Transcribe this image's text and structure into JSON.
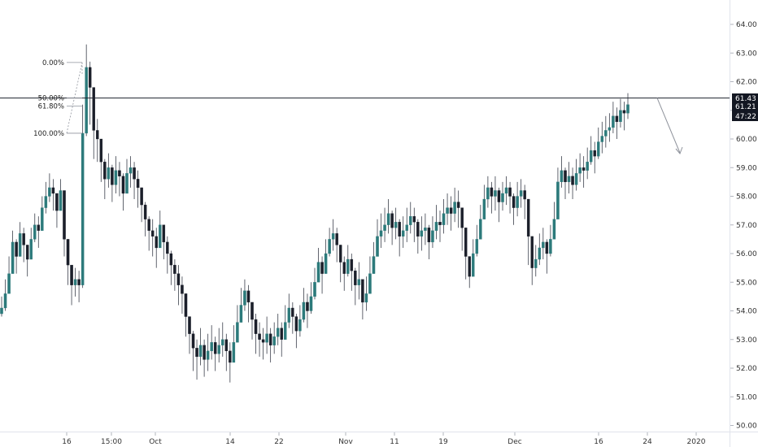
{
  "chart_data": {
    "type": "candlestick",
    "y_axis": {
      "ticks": [
        "64.00",
        "63.00",
        "62.00",
        "61.00",
        "60.00",
        "59.00",
        "58.00",
        "57.00",
        "56.00",
        "55.00",
        "54.00",
        "53.00",
        "52.00",
        "51.00",
        "50.00"
      ],
      "range": [
        49.8,
        64.6
      ]
    },
    "x_axis": {
      "ticks": [
        "16",
        "15:00",
        "Oct",
        "14",
        "22",
        "Nov",
        "11",
        "19",
        "Dec",
        "16",
        "24",
        "2020"
      ]
    },
    "price_tags": [
      {
        "label": "61.43",
        "value": 61.43,
        "bg": "#131722"
      },
      {
        "label": "61.21",
        "value": 61.21,
        "bg": "#131722"
      },
      {
        "label": "47:22",
        "value": 60.93,
        "bg": "#131722"
      }
    ],
    "fib_levels": [
      {
        "label": "0.00%",
        "value": 62.67
      },
      {
        "label": "50.00%",
        "value": 61.43
      },
      {
        "label": "61.80%",
        "value": 61.15
      },
      {
        "label": "100.00%",
        "value": 60.2
      }
    ],
    "horizontal_line": {
      "value": 61.43
    },
    "closes": [
      54.1,
      54.6,
      55.3,
      56.4,
      55.9,
      56.7,
      56.3,
      55.8,
      56.5,
      57.0,
      56.8,
      57.6,
      58.0,
      58.3,
      58.1,
      57.5,
      58.2,
      56.5,
      55.6,
      54.9,
      55.1,
      54.9,
      60.2,
      62.5,
      61.8,
      60.3,
      60.0,
      59.2,
      58.6,
      59.0,
      58.4,
      58.9,
      58.7,
      58.1,
      58.8,
      59.0,
      58.6,
      58.3,
      57.7,
      57.2,
      56.8,
      56.6,
      56.2,
      57.0,
      56.4,
      56.0,
      55.6,
      55.3,
      54.9,
      54.6,
      53.8,
      53.2,
      52.7,
      52.4,
      52.8,
      52.3,
      52.6,
      52.9,
      52.5,
      52.8,
      53.0,
      52.6,
      52.2,
      52.9,
      53.6,
      54.2,
      54.7,
      54.3,
      53.7,
      53.2,
      53.0,
      52.9,
      53.2,
      52.8,
      53.1,
      53.4,
      53.0,
      53.6,
      54.1,
      53.8,
      53.3,
      53.7,
      54.3,
      54.0,
      54.5,
      55.0,
      55.7,
      55.3,
      56.0,
      56.5,
      56.7,
      56.3,
      55.7,
      55.3,
      55.8,
      55.4,
      54.9,
      55.1,
      54.3,
      54.6,
      55.3,
      55.9,
      56.6,
      56.8,
      57.0,
      57.4,
      56.9,
      57.1,
      56.6,
      56.8,
      57.0,
      57.3,
      57.1,
      56.6,
      56.8,
      56.9,
      56.4,
      56.8,
      57.1,
      57.0,
      57.4,
      57.6,
      57.4,
      57.8,
      57.6,
      56.9,
      55.9,
      55.2,
      56.0,
      56.5,
      57.2,
      57.9,
      58.3,
      58.0,
      58.2,
      57.8,
      58.1,
      58.3,
      58.0,
      57.6,
      58.0,
      58.2,
      57.9,
      56.6,
      55.5,
      55.8,
      56.2,
      56.4,
      56.0,
      56.5,
      57.2,
      58.5,
      58.9,
      58.5,
      58.7,
      58.4,
      58.8,
      59.0,
      58.9,
      59.2,
      59.6,
      59.4,
      59.9,
      60.1,
      60.3,
      60.4,
      60.8,
      60.6,
      61.0,
      60.9,
      61.2
    ],
    "highs": [
      54.5,
      55.1,
      55.9,
      56.8,
      56.5,
      57.1,
      56.9,
      56.3,
      56.9,
      57.4,
      57.3,
      58.0,
      58.5,
      58.8,
      58.6,
      58.1,
      58.6,
      57.3,
      56.2,
      55.5,
      55.5,
      55.4,
      61.2,
      63.3,
      62.7,
      61.5,
      60.7,
      59.9,
      59.3,
      59.5,
      59.1,
      59.4,
      59.2,
      58.8,
      59.3,
      59.4,
      59.2,
      58.9,
      58.2,
      57.8,
      57.3,
      57.2,
      56.9,
      57.5,
      57.0,
      56.6,
      56.1,
      55.8,
      55.6,
      55.2,
      54.4,
      53.8,
      53.3,
      53.0,
      53.4,
      53.0,
      53.2,
      53.5,
      53.1,
      53.4,
      53.6,
      53.2,
      52.9,
      53.5,
      54.2,
      54.8,
      55.1,
      54.9,
      54.2,
      53.9,
      53.6,
      53.4,
      53.8,
      53.4,
      53.6,
      53.9,
      53.6,
      54.2,
      54.6,
      54.3,
      53.9,
      54.2,
      54.8,
      54.6,
      55.0,
      55.5,
      56.2,
      55.9,
      56.5,
      56.9,
      57.2,
      56.9,
      56.3,
      55.9,
      56.3,
      56.0,
      55.5,
      55.7,
      54.9,
      55.2,
      55.9,
      56.4,
      57.2,
      57.4,
      57.6,
      57.9,
      57.5,
      57.6,
      57.2,
      57.3,
      57.6,
      57.8,
      57.6,
      57.2,
      57.3,
      57.4,
      57.0,
      57.3,
      57.7,
      57.5,
      57.9,
      58.1,
      58.0,
      58.3,
      58.2,
      57.5,
      56.6,
      55.8,
      56.5,
      57.0,
      57.7,
      58.4,
      58.7,
      58.5,
      58.7,
      58.3,
      58.5,
      58.7,
      58.5,
      58.1,
      58.5,
      58.6,
      58.4,
      57.2,
      56.2,
      56.3,
      56.7,
      56.9,
      56.5,
      57.0,
      57.8,
      59.0,
      59.4,
      59.0,
      59.2,
      59.0,
      59.3,
      59.5,
      59.4,
      59.7,
      60.1,
      59.9,
      60.4,
      60.6,
      60.8,
      60.9,
      61.3,
      61.1,
      61.4,
      61.3,
      61.6
    ],
    "lows": [
      53.8,
      54.0,
      54.8,
      55.8,
      55.3,
      56.1,
      55.7,
      55.2,
      55.9,
      56.4,
      56.2,
      57.0,
      57.4,
      57.8,
      57.5,
      56.9,
      57.6,
      55.9,
      54.9,
      54.2,
      54.5,
      54.3,
      54.8,
      60.1,
      60.5,
      59.3,
      59.2,
      58.5,
      57.9,
      58.3,
      57.8,
      58.1,
      58.0,
      57.5,
      58.1,
      58.3,
      57.9,
      57.6,
      57.1,
      56.6,
      56.1,
      55.9,
      55.5,
      56.4,
      55.8,
      55.3,
      54.9,
      54.7,
      54.2,
      53.9,
      53.1,
      52.5,
      51.9,
      51.6,
      52.1,
      51.7,
      51.9,
      52.3,
      51.9,
      52.2,
      52.4,
      51.9,
      51.5,
      52.3,
      53.0,
      53.6,
      54.0,
      53.6,
      53.0,
      52.5,
      52.4,
      52.3,
      52.5,
      52.2,
      52.5,
      52.8,
      52.4,
      53.0,
      53.4,
      53.2,
      52.7,
      53.1,
      53.6,
      53.4,
      53.9,
      54.4,
      55.1,
      54.6,
      55.4,
      55.9,
      56.1,
      55.7,
      55.0,
      54.7,
      55.2,
      54.7,
      54.2,
      54.4,
      53.7,
      54.0,
      54.6,
      55.3,
      55.9,
      56.2,
      56.4,
      56.7,
      56.3,
      56.5,
      55.9,
      56.2,
      56.4,
      56.7,
      56.4,
      56.0,
      56.1,
      56.3,
      55.8,
      56.2,
      56.5,
      56.4,
      56.7,
      57.0,
      56.8,
      57.1,
      56.9,
      56.1,
      55.1,
      54.8,
      55.3,
      55.9,
      56.5,
      57.2,
      57.6,
      57.4,
      57.5,
      57.1,
      57.5,
      57.7,
      57.4,
      57.0,
      57.3,
      57.6,
      57.2,
      55.6,
      54.9,
      55.2,
      55.6,
      55.8,
      55.3,
      55.9,
      56.6,
      57.8,
      58.3,
      57.9,
      58.1,
      57.9,
      58.2,
      58.5,
      58.3,
      58.6,
      59.1,
      58.8,
      59.3,
      59.5,
      59.7,
      59.9,
      60.2,
      60.0,
      60.4,
      60.3,
      60.7
    ]
  }
}
